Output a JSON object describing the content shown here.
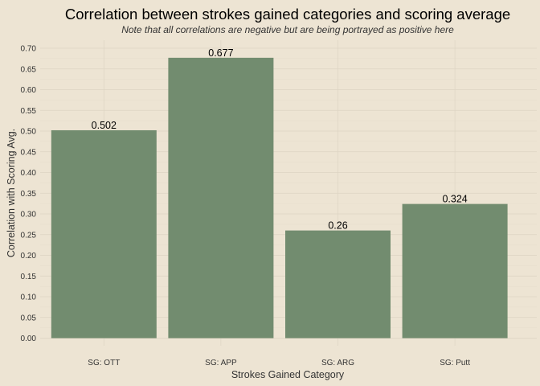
{
  "chart_data": {
    "type": "bar",
    "title": "Correlation between strokes gained categories and scoring average",
    "subtitle": "Note that all correlations are negative but are being portrayed as positive here",
    "xlabel": "Strokes Gained Category",
    "ylabel": "Correlation with Scoring Avg.",
    "categories": [
      "SG: OTT",
      "SG: APP",
      "SG: ARG",
      "SG: Putt"
    ],
    "values": [
      0.502,
      0.677,
      0.26,
      0.324
    ],
    "value_labels": [
      "0.502",
      "0.677",
      "0.26",
      "0.324"
    ],
    "ylim": [
      0,
      0.7
    ],
    "yticks": [
      "0.00",
      "0.05",
      "0.10",
      "0.15",
      "0.20",
      "0.25",
      "0.30",
      "0.35",
      "0.40",
      "0.45",
      "0.50",
      "0.55",
      "0.60",
      "0.65",
      "0.70"
    ],
    "bar_color": "#728c6f",
    "background_color": "#ede4d3",
    "grid": true,
    "legend": "none"
  }
}
